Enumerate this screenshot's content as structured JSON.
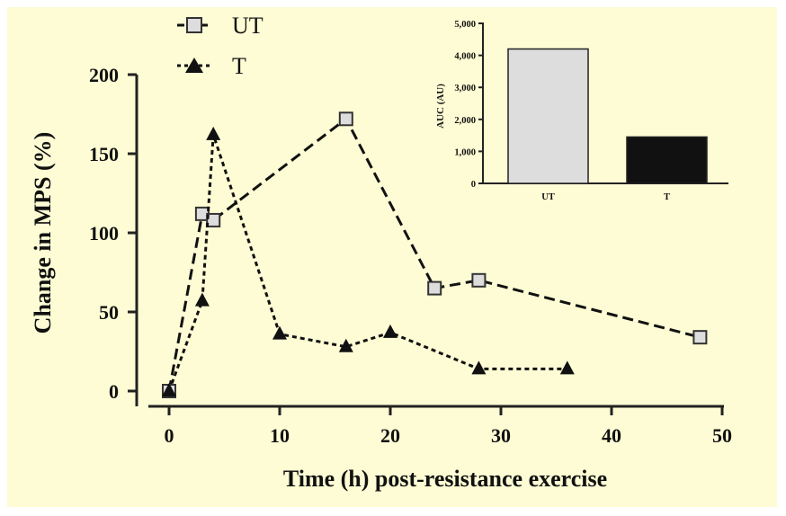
{
  "chart_data": [
    {
      "type": "line",
      "xlabel": "Time (h) post-resistance exercise",
      "ylabel": "Change in MPS (%)",
      "xlim": [
        0,
        50
      ],
      "ylim": [
        0,
        200
      ],
      "xticks": [
        "0",
        "10",
        "20",
        "30",
        "40",
        "50"
      ],
      "yticks": [
        "0",
        "50",
        "100",
        "150",
        "200"
      ],
      "grid": false,
      "legend_position": "top-left",
      "series": [
        {
          "name": "UT",
          "marker": "square",
          "line": "dashed",
          "color": "#dddddd",
          "x": [
            0,
            3,
            4,
            16,
            24,
            28,
            48
          ],
          "y": [
            0,
            112,
            108,
            172,
            65,
            70,
            34
          ]
        },
        {
          "name": "T",
          "marker": "triangle",
          "line": "dotted",
          "color": "#111111",
          "x": [
            0,
            3,
            4,
            10,
            16,
            20,
            28,
            36
          ],
          "y": [
            0,
            57,
            162,
            36,
            28,
            37,
            14,
            14
          ]
        }
      ]
    },
    {
      "type": "bar",
      "ylabel": "AUC (AU)",
      "categories": [
        "UT",
        "T"
      ],
      "values": [
        4200,
        1450
      ],
      "colors": [
        "#dddddd",
        "#111111"
      ],
      "ylim": [
        0,
        5000
      ],
      "yticks": [
        "0",
        "1,000",
        "2,000",
        "3,000",
        "4,000",
        "5,000"
      ]
    }
  ]
}
